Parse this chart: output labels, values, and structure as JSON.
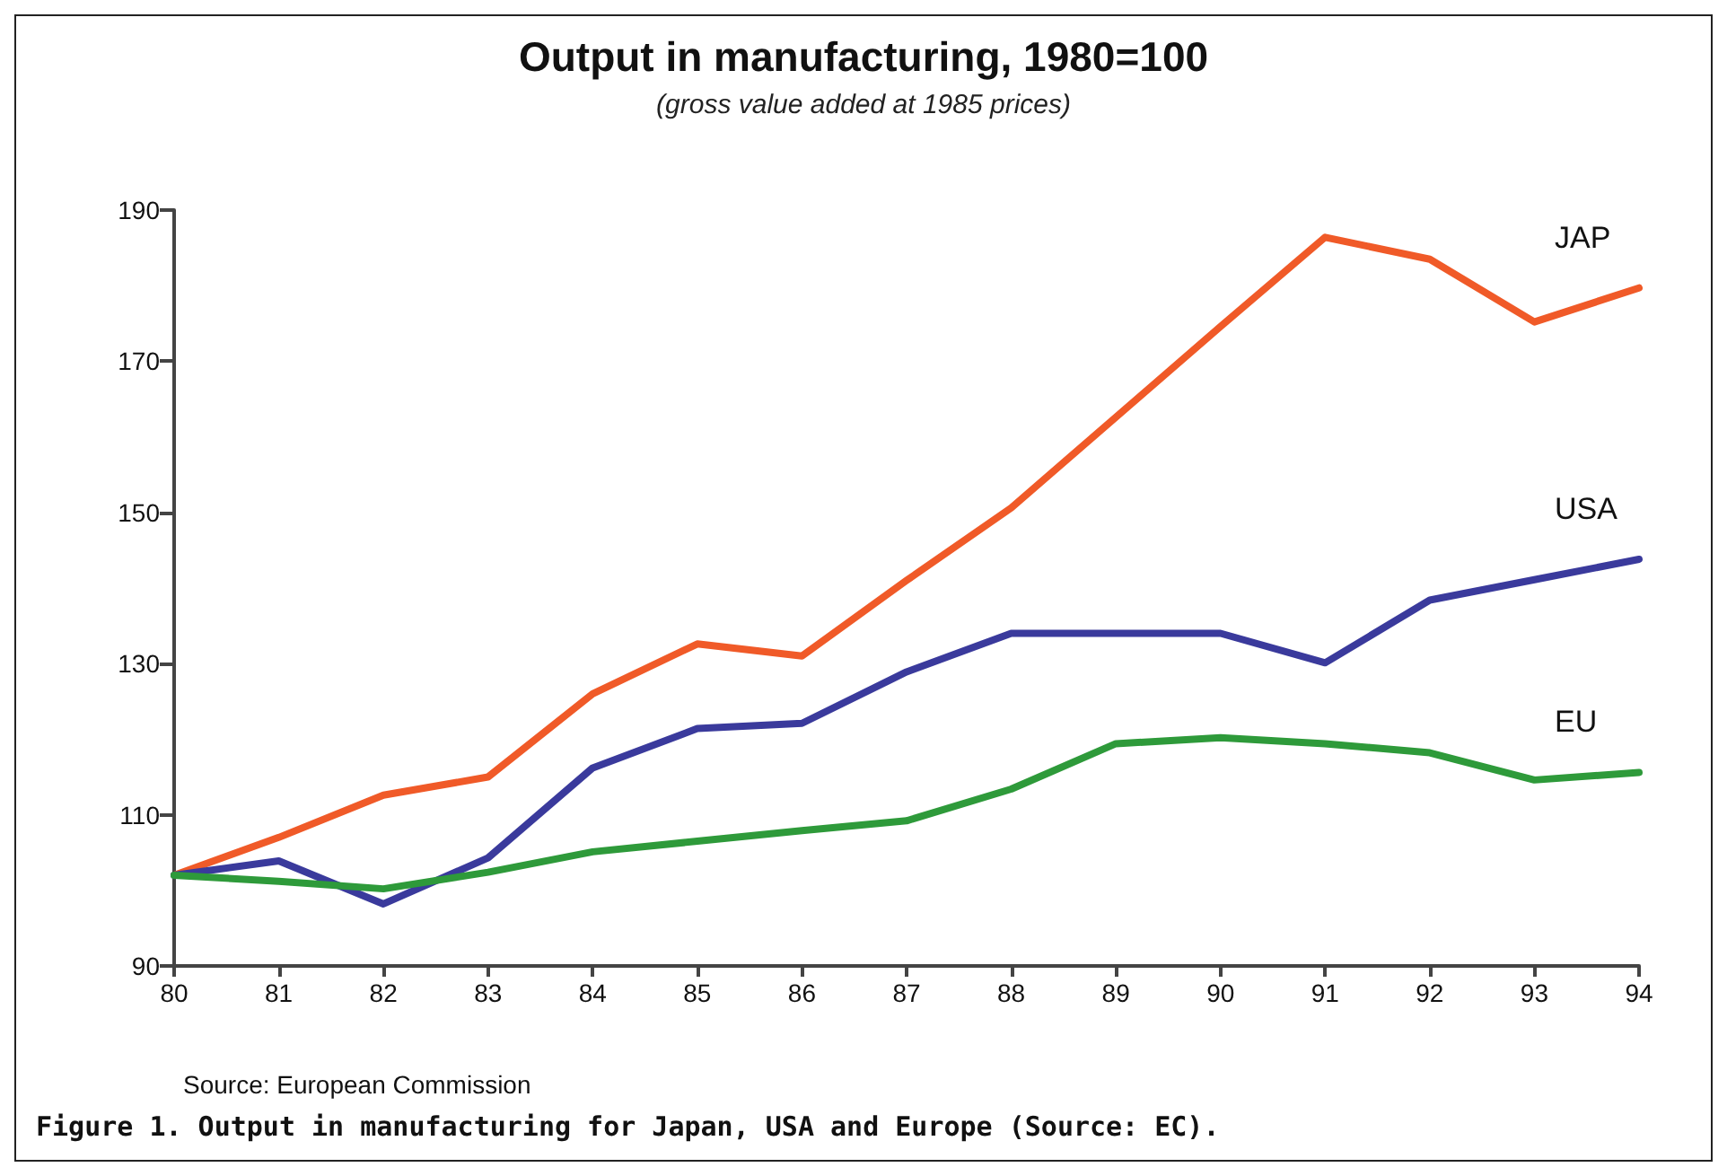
{
  "chart_data": {
    "type": "line",
    "title": "Output in manufacturing, 1980=100",
    "subtitle": "(gross value added at 1985 prices)",
    "x": [
      80,
      81,
      82,
      83,
      84,
      85,
      86,
      87,
      88,
      89,
      90,
      91,
      92,
      93,
      94
    ],
    "series": [
      {
        "name": "JAP",
        "color": "#f05a28",
        "values": [
          102,
          107,
          112.6,
          115,
          126,
          132.6,
          131,
          141,
          150.6,
          162.6,
          174.6,
          186.4,
          183.5,
          175.2,
          179.7
        ]
      },
      {
        "name": "USA",
        "color": "#3a3a9c",
        "values": [
          102,
          103.9,
          98.2,
          104.3,
          116.2,
          121.4,
          122.1,
          128.9,
          134,
          134,
          134,
          130.1,
          138.4,
          141.1,
          143.8
        ]
      },
      {
        "name": "EU",
        "color": "#2e9a3a",
        "values": [
          102,
          101.2,
          100.2,
          102.4,
          105.1,
          106.5,
          107.9,
          109.2,
          113.4,
          119.4,
          120.2,
          119.4,
          118.2,
          114.6,
          115.6
        ]
      }
    ],
    "xlim": [
      80,
      94
    ],
    "xticks": [
      80,
      81,
      82,
      83,
      84,
      85,
      86,
      87,
      88,
      89,
      90,
      91,
      92,
      93,
      94
    ],
    "ylim": [
      90,
      190
    ],
    "yticks": [
      90,
      110,
      130,
      150,
      170,
      190
    ],
    "grid": false,
    "legend": false,
    "marker": "none",
    "line_style": "solid",
    "annotations": [
      "Source: European Commission",
      "Figure 1. Output in manufacturing for Japan, USA and Europe (Source: EC)."
    ]
  }
}
